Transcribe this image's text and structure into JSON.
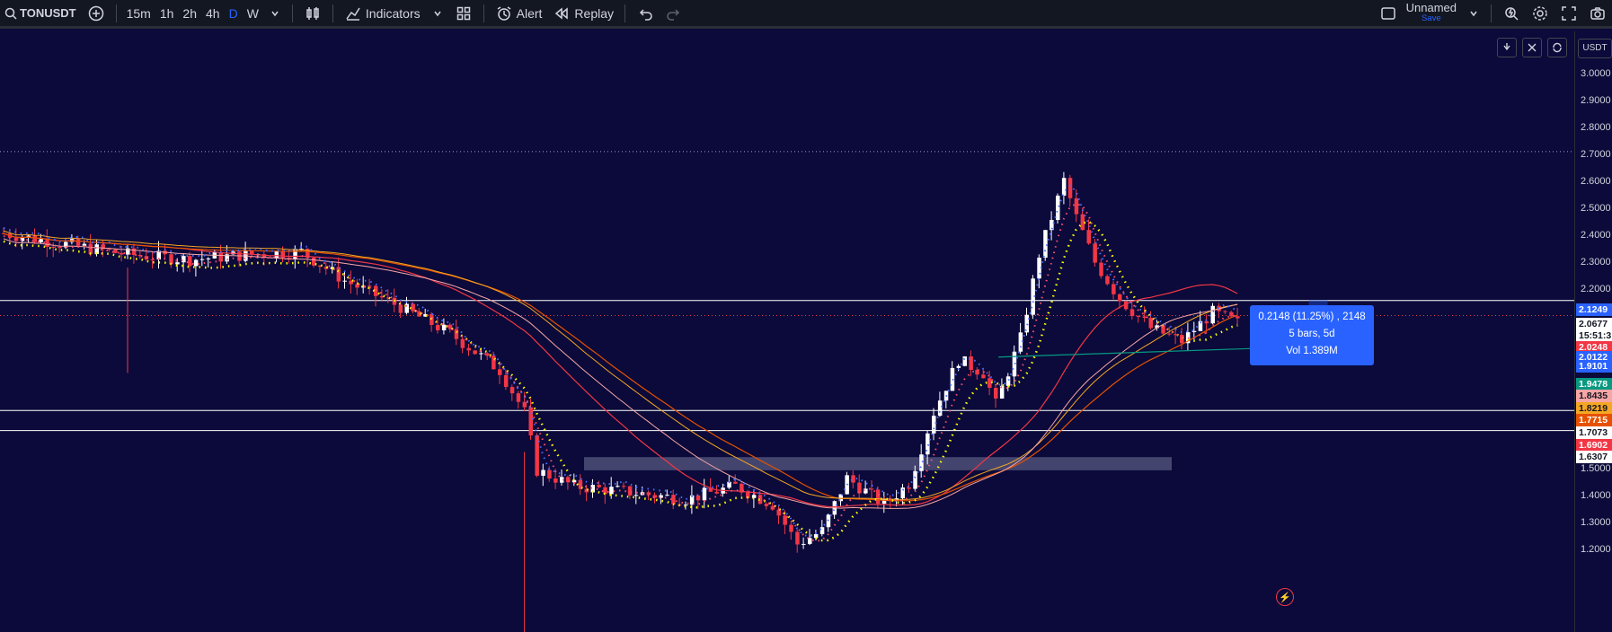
{
  "toolbar": {
    "symbol": "TONUSDT",
    "intervals": [
      "15m",
      "1h",
      "2h",
      "4h",
      "D",
      "W"
    ],
    "active_interval": "D",
    "indicators_label": "Indicators",
    "alert_label": "Alert",
    "replay_label": "Replay",
    "layout_name": "Unnamed",
    "layout_save": "Save"
  },
  "axis": {
    "currency": "USDT",
    "ticks": [
      "3.0000",
      "2.9000",
      "2.8000",
      "2.7000",
      "2.6000",
      "2.5000",
      "2.4000",
      "2.3000",
      "2.2000",
      "1.5000",
      "1.4000",
      "1.3000",
      "1.2000"
    ],
    "badges": [
      {
        "text": "2.1249",
        "bg": "#2962ff",
        "fg": "#ffffff"
      },
      {
        "text": "2.0677",
        "bg": "#ffffff",
        "fg": "#131722"
      },
      {
        "text": "15:51:3",
        "bg": "#ffffff",
        "fg": "#131722"
      },
      {
        "text": "2.0248",
        "bg": "#f23645",
        "fg": "#ffffff"
      },
      {
        "text": "2.0122",
        "bg": "#2962ff",
        "fg": "#ffffff"
      },
      {
        "text": "1.9101",
        "bg": "#2962ff",
        "fg": "#ffffff"
      },
      {
        "text": "1.9478",
        "bg": "#089981",
        "fg": "#ffffff"
      },
      {
        "text": "1.8435",
        "bg": "#f7a6a6",
        "fg": "#131722"
      },
      {
        "text": "1.8219",
        "bg": "#f5a623",
        "fg": "#131722"
      },
      {
        "text": "1.7715",
        "bg": "#e65100",
        "fg": "#ffffff"
      },
      {
        "text": "1.7073",
        "bg": "#ffffff",
        "fg": "#131722"
      },
      {
        "text": "1.6902",
        "bg": "#f23645",
        "fg": "#ffffff"
      },
      {
        "text": "1.6307",
        "bg": "#ffffff",
        "fg": "#131722"
      }
    ]
  },
  "measure": {
    "line1": "0.2148 (11.25%) , 2148",
    "line2": "5 bars, 5d",
    "line3": "Vol 1.389M"
  },
  "colors": {
    "background": "#0b0a3a",
    "up": "#ffffff",
    "down": "#f23645",
    "accent": "#2962ff"
  }
}
